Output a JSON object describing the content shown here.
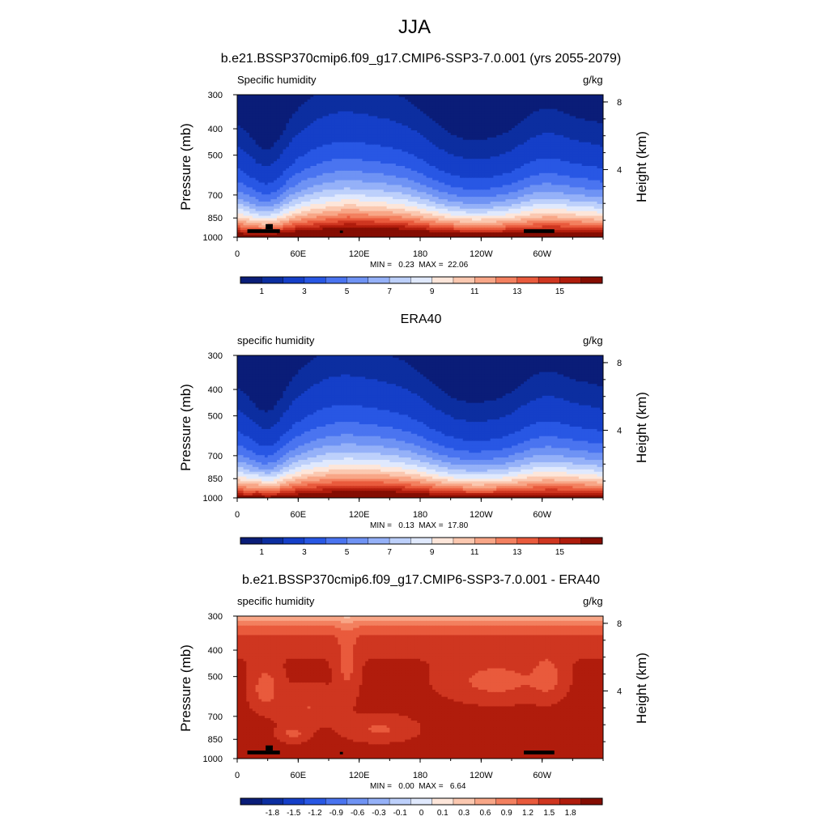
{
  "figure": {
    "title": "JJA",
    "colors": {
      "abs": [
        "#0a1d78",
        "#0c2ea0",
        "#153fc8",
        "#2857e4",
        "#4a74f0",
        "#6f93f4",
        "#95b1f8",
        "#bdd0fb",
        "#e0e9fd",
        "#fde6da",
        "#fbc8b0",
        "#f8a687",
        "#f3805f",
        "#e95a3c",
        "#cf3620",
        "#b01c0c",
        "#850d02"
      ],
      "diff": [
        "#0a1d78",
        "#0c2ea0",
        "#153fc8",
        "#2857e4",
        "#4a74f0",
        "#6f93f4",
        "#95b1f8",
        "#bdd0fb",
        "#e0e9fd",
        "#fde6da",
        "#fbc8b0",
        "#f8a687",
        "#f3805f",
        "#e95a3c",
        "#cf3620",
        "#b01c0c",
        "#850d02"
      ]
    }
  },
  "chart_data": [
    {
      "type": "heatmap",
      "title": "b.e21.BSSP370cmip6.f09_g17.CMIP6-SSP3-7.0.001 (yrs 2055-2079)",
      "left_label": "Specific humidity",
      "right_label": "g/kg",
      "ylabel": "Pressure (mb)",
      "ylabel_right": "Height (km)",
      "x_ticks": [
        "0",
        "60E",
        "120E",
        "180",
        "120W",
        "60W"
      ],
      "x_tick_values": [
        0,
        60,
        120,
        180,
        240,
        300
      ],
      "xlim": [
        0,
        360
      ],
      "y_ticks": [
        "300",
        "400",
        "500",
        "700",
        "850",
        "1000"
      ],
      "y_tick_values": [
        300,
        400,
        500,
        700,
        850,
        1000
      ],
      "ylim": [
        1000,
        300
      ],
      "y_right_ticks": [
        "8",
        "4"
      ],
      "y_right_values": [
        8,
        4
      ],
      "min_max": "MIN =   0.23  MAX =  22.06",
      "colorbar": {
        "labels": [
          "1",
          "3",
          "5",
          "7",
          "9",
          "11",
          "13",
          "15"
        ],
        "positions": [
          1,
          3,
          5,
          7,
          9,
          11,
          13,
          15
        ]
      },
      "variant": "model",
      "levels": [
        0.5,
        1,
        2,
        3,
        4,
        5,
        6,
        7,
        8,
        9,
        10,
        11,
        12,
        13,
        14,
        15,
        16
      ],
      "palette": "abs",
      "terrain": true
    },
    {
      "type": "heatmap",
      "title": "ERA40",
      "left_label": "specific humidity",
      "right_label": "g/kg",
      "ylabel": "Pressure (mb)",
      "ylabel_right": "Height (km)",
      "x_ticks": [
        "0",
        "60E",
        "120E",
        "180",
        "120W",
        "60W"
      ],
      "x_tick_values": [
        0,
        60,
        120,
        180,
        240,
        300
      ],
      "xlim": [
        0,
        360
      ],
      "y_ticks": [
        "300",
        "400",
        "500",
        "700",
        "850",
        "1000"
      ],
      "y_tick_values": [
        300,
        400,
        500,
        700,
        850,
        1000
      ],
      "ylim": [
        1000,
        300
      ],
      "y_right_ticks": [
        "8",
        "4"
      ],
      "y_right_values": [
        8,
        4
      ],
      "min_max": "MIN =   0.13  MAX =  17.80",
      "colorbar": {
        "labels": [
          "1",
          "3",
          "5",
          "7",
          "9",
          "11",
          "13",
          "15"
        ],
        "positions": [
          1,
          3,
          5,
          7,
          9,
          11,
          13,
          15
        ]
      },
      "variant": "obs",
      "levels": [
        0.5,
        1,
        2,
        3,
        4,
        5,
        6,
        7,
        8,
        9,
        10,
        11,
        12,
        13,
        14,
        15,
        16
      ],
      "palette": "abs",
      "terrain": false
    },
    {
      "type": "heatmap",
      "title": "b.e21.BSSP370cmip6.f09_g17.CMIP6-SSP3-7.0.001 - ERA40",
      "left_label": "specific humidity",
      "right_label": "g/kg",
      "ylabel": "Pressure (mb)",
      "ylabel_right": "Height (km)",
      "x_ticks": [
        "0",
        "60E",
        "120E",
        "180",
        "120W",
        "60W"
      ],
      "x_tick_values": [
        0,
        60,
        120,
        180,
        240,
        300
      ],
      "xlim": [
        0,
        360
      ],
      "y_ticks": [
        "300",
        "400",
        "500",
        "700",
        "850",
        "1000"
      ],
      "y_tick_values": [
        300,
        400,
        500,
        700,
        850,
        1000
      ],
      "ylim": [
        1000,
        300
      ],
      "y_right_ticks": [
        "8",
        "4"
      ],
      "y_right_values": [
        8,
        4
      ],
      "min_max": "MIN =   0.00  MAX =   6.64",
      "colorbar": {
        "labels": [
          "-1.8",
          "-1.5",
          "-1.2",
          "-0.9",
          "-0.6",
          "-0.3",
          "-0.1",
          "0",
          "0.1",
          "0.3",
          "0.6",
          "0.9",
          "1.2",
          "1.5",
          "1.8"
        ],
        "positions": [
          -1.8,
          -1.5,
          -1.2,
          -0.9,
          -0.6,
          -0.3,
          -0.1,
          0,
          0.1,
          0.3,
          0.6,
          0.9,
          1.2,
          1.5,
          1.8
        ]
      },
      "variant": "diff",
      "levels": [
        -1.8,
        -1.5,
        -1.2,
        -0.9,
        -0.6,
        -0.3,
        -0.1,
        0,
        0.1,
        0.3,
        0.6,
        0.9,
        1.2,
        1.5,
        1.8
      ],
      "palette": "diff",
      "terrain": true
    }
  ]
}
